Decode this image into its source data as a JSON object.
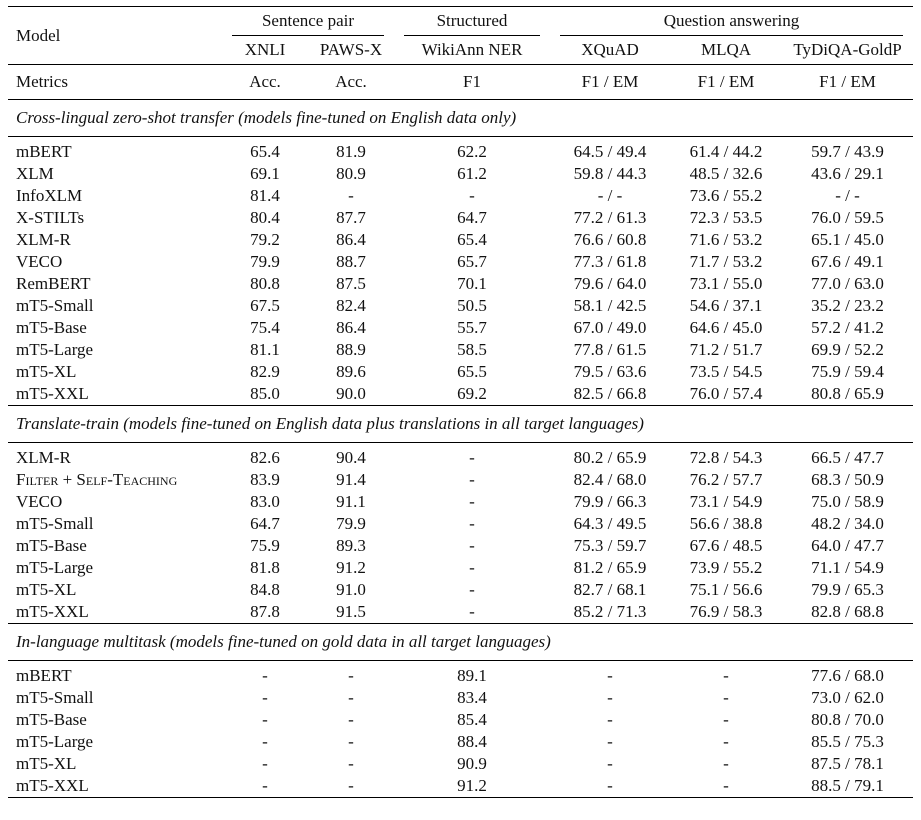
{
  "header": {
    "model": "Model",
    "groups": {
      "sentence_pair": "Sentence pair",
      "structured": "Structured",
      "qa": "Question answering"
    },
    "columns": [
      "XNLI",
      "PAWS-X",
      "WikiAnn NER",
      "XQuAD",
      "MLQA",
      "TyDiQA-GoldP"
    ],
    "metrics_label": "Metrics",
    "metrics": [
      "Acc.",
      "Acc.",
      "F1",
      "F1 / EM",
      "F1 / EM",
      "F1 / EM"
    ]
  },
  "sections": [
    {
      "title": "Cross-lingual zero-shot transfer (models fine-tuned on English data only)",
      "rows": [
        {
          "model": "mBERT",
          "cells": [
            "65.4",
            "81.9",
            "62.2",
            "64.5 / 49.4",
            "61.4 / 44.2",
            "59.7 / 43.9"
          ]
        },
        {
          "model": "XLM",
          "cells": [
            "69.1",
            "80.9",
            "61.2",
            "59.8 / 44.3",
            "48.5 / 32.6",
            "43.6 / 29.1"
          ]
        },
        {
          "model": "InfoXLM",
          "cells": [
            "81.4",
            "-",
            "-",
            "- / -",
            "73.6 / 55.2",
            "- / -"
          ]
        },
        {
          "model": "X-STILTs",
          "cells": [
            "80.4",
            "87.7",
            "64.7",
            "77.2 / 61.3",
            "72.3 / 53.5",
            "76.0 / 59.5"
          ]
        },
        {
          "model": "XLM-R",
          "cells": [
            "79.2",
            "86.4",
            "65.4",
            "76.6 / 60.8",
            "71.6 / 53.2",
            "65.1 / 45.0"
          ]
        },
        {
          "model": "VECO",
          "cells": [
            "79.9",
            "88.7",
            "65.7",
            "77.3 / 61.8",
            "71.7 / 53.2",
            "67.6 / 49.1"
          ]
        },
        {
          "model": "RemBERT",
          "cells": [
            "80.8",
            "87.5",
            "70.1",
            "79.6 / 64.0",
            "73.1 / 55.0",
            "77.0 / 63.0"
          ]
        },
        {
          "model": "mT5-Small",
          "cells": [
            "67.5",
            "82.4",
            "50.5",
            "58.1 / 42.5",
            "54.6 / 37.1",
            "35.2 / 23.2"
          ]
        },
        {
          "model": "mT5-Base",
          "cells": [
            "75.4",
            "86.4",
            "55.7",
            "67.0 / 49.0",
            "64.6 / 45.0",
            "57.2 / 41.2"
          ]
        },
        {
          "model": "mT5-Large",
          "cells": [
            "81.1",
            "88.9",
            "58.5",
            "77.8 / 61.5",
            "71.2 / 51.7",
            "69.9 / 52.2"
          ]
        },
        {
          "model": "mT5-XL",
          "cells": [
            "82.9",
            "89.6",
            "65.5",
            "79.5 / 63.6",
            "73.5 / 54.5",
            "75.9 / 59.4"
          ]
        },
        {
          "model": "mT5-XXL",
          "cells": [
            "85.0",
            "90.0",
            "69.2",
            "82.5 / 66.8",
            "76.0 / 57.4",
            "80.8 / 65.9"
          ]
        }
      ]
    },
    {
      "title": "Translate-train (models fine-tuned on English data plus translations in all target languages)",
      "rows": [
        {
          "model": "XLM-R",
          "cells": [
            "82.6",
            "90.4",
            "-",
            "80.2 / 65.9",
            "72.8 / 54.3",
            "66.5 / 47.7"
          ]
        },
        {
          "model": "Filter + Self-Teaching",
          "cells": [
            "83.9",
            "91.4",
            "-",
            "82.4 / 68.0",
            "76.2 / 57.7",
            "68.3 / 50.9"
          ]
        },
        {
          "model": "VECO",
          "cells": [
            "83.0",
            "91.1",
            "-",
            "79.9 / 66.3",
            "73.1 / 54.9",
            "75.0 / 58.9"
          ]
        },
        {
          "model": "mT5-Small",
          "cells": [
            "64.7",
            "79.9",
            "-",
            "64.3 / 49.5",
            "56.6 / 38.8",
            "48.2 / 34.0"
          ]
        },
        {
          "model": "mT5-Base",
          "cells": [
            "75.9",
            "89.3",
            "-",
            "75.3 / 59.7",
            "67.6 / 48.5",
            "64.0 / 47.7"
          ]
        },
        {
          "model": "mT5-Large",
          "cells": [
            "81.8",
            "91.2",
            "-",
            "81.2 / 65.9",
            "73.9 / 55.2",
            "71.1 / 54.9"
          ]
        },
        {
          "model": "mT5-XL",
          "cells": [
            "84.8",
            "91.0",
            "-",
            "82.7 / 68.1",
            "75.1 / 56.6",
            "79.9 / 65.3"
          ]
        },
        {
          "model": "mT5-XXL",
          "cells": [
            "87.8",
            "91.5",
            "-",
            "85.2 / 71.3",
            "76.9 / 58.3",
            "82.8 / 68.8"
          ]
        }
      ]
    },
    {
      "title": "In-language multitask (models fine-tuned on gold data in all target languages)",
      "rows": [
        {
          "model": "mBERT",
          "cells": [
            "-",
            "-",
            "89.1",
            "-",
            "-",
            "77.6 / 68.0"
          ]
        },
        {
          "model": "mT5-Small",
          "cells": [
            "-",
            "-",
            "83.4",
            "-",
            "-",
            "73.0 / 62.0"
          ]
        },
        {
          "model": "mT5-Base",
          "cells": [
            "-",
            "-",
            "85.4",
            "-",
            "-",
            "80.8 / 70.0"
          ]
        },
        {
          "model": "mT5-Large",
          "cells": [
            "-",
            "-",
            "88.4",
            "-",
            "-",
            "85.5 / 75.3"
          ]
        },
        {
          "model": "mT5-XL",
          "cells": [
            "-",
            "-",
            "90.9",
            "-",
            "-",
            "87.5 / 78.1"
          ]
        },
        {
          "model": "mT5-XXL",
          "cells": [
            "-",
            "-",
            "91.2",
            "-",
            "-",
            "88.5 / 79.1"
          ]
        }
      ]
    }
  ]
}
